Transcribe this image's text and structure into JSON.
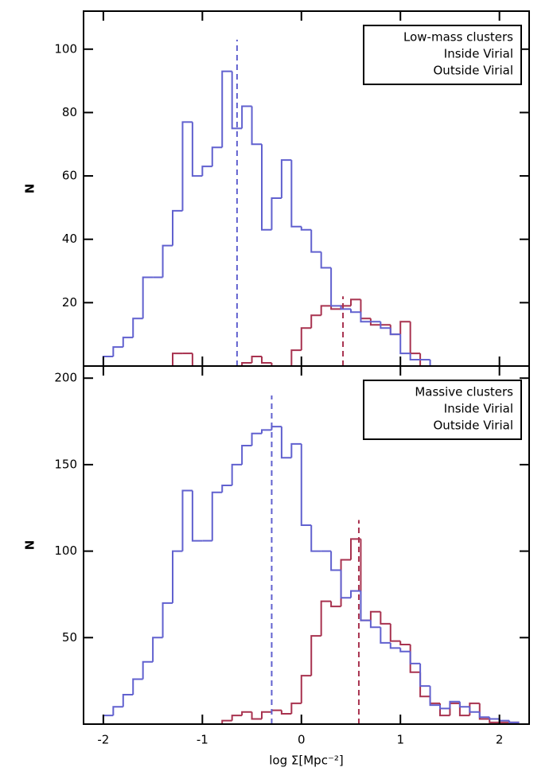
{
  "chart_data": [
    {
      "type": "histogram",
      "legend_title": "Low-mass clusters",
      "legend_title_color": "#a0109a",
      "legend": "upper right",
      "ylabel": "N",
      "show_xtick_labels": false,
      "bins": [
        -2.1,
        -2.0,
        -1.9,
        -1.8,
        -1.7,
        -1.6,
        -1.5,
        -1.4,
        -1.3,
        -1.2,
        -1.1,
        -1.0,
        -0.9,
        -0.8,
        -0.7,
        -0.6,
        -0.5,
        -0.4,
        -0.3,
        -0.2,
        -0.1,
        0.0,
        0.1,
        0.2,
        0.3,
        0.4,
        0.5,
        0.6,
        0.7,
        0.8,
        0.9,
        1.0,
        1.1,
        1.2,
        1.3,
        1.4,
        1.5,
        1.6,
        1.7,
        1.8,
        1.9,
        2.0,
        2.1,
        2.2
      ],
      "series": [
        {
          "name": "Inside Virial",
          "color": "#a8324f",
          "values": [
            0,
            0,
            0,
            0,
            0,
            0,
            0,
            0,
            4,
            4,
            0,
            0,
            0,
            0,
            0,
            1,
            3,
            1,
            0,
            0,
            5,
            12,
            16,
            19,
            18,
            19,
            21,
            15,
            13,
            13,
            10,
            14,
            4,
            0,
            0,
            0,
            0,
            0,
            0,
            0,
            0,
            0,
            0
          ],
          "median": {
            "x": 0.42,
            "top": 22
          }
        },
        {
          "name": "Outside Virial",
          "color": "#6161cf",
          "values": [
            0,
            3,
            6,
            9,
            15,
            28,
            28,
            38,
            49,
            77,
            60,
            63,
            69,
            93,
            75,
            82,
            70,
            43,
            53,
            65,
            44,
            43,
            36,
            31,
            19,
            18,
            17,
            14,
            14,
            12,
            10,
            4,
            2,
            2,
            0,
            0,
            0,
            0,
            0,
            0,
            0,
            0,
            0
          ],
          "median": {
            "x": -0.65,
            "top": 103
          }
        }
      ],
      "xlim": [
        -2.2,
        2.3
      ],
      "xticks": [
        -2,
        -1,
        0,
        1,
        2
      ],
      "ylim": [
        0,
        112
      ],
      "yticks": [
        20,
        40,
        60,
        80,
        100
      ]
    },
    {
      "type": "histogram",
      "legend_title": "Massive clusters",
      "legend_title_color": "#a0109a",
      "legend": "upper right",
      "ylabel": "N",
      "xlabel": "log Σ[Mpc⁻²]",
      "show_xtick_labels": true,
      "bins": [
        -2.1,
        -2.0,
        -1.9,
        -1.8,
        -1.7,
        -1.6,
        -1.5,
        -1.4,
        -1.3,
        -1.2,
        -1.1,
        -1.0,
        -0.9,
        -0.8,
        -0.7,
        -0.6,
        -0.5,
        -0.4,
        -0.3,
        -0.2,
        -0.1,
        0.0,
        0.1,
        0.2,
        0.3,
        0.4,
        0.5,
        0.6,
        0.7,
        0.8,
        0.9,
        1.0,
        1.1,
        1.2,
        1.3,
        1.4,
        1.5,
        1.6,
        1.7,
        1.8,
        1.9,
        2.0,
        2.1,
        2.2
      ],
      "series": [
        {
          "name": "Inside Virial",
          "color": "#a8324f",
          "values": [
            0,
            0,
            0,
            0,
            0,
            0,
            0,
            0,
            0,
            0,
            0,
            0,
            0,
            2,
            5,
            7,
            3,
            7,
            8,
            6,
            12,
            28,
            51,
            71,
            68,
            95,
            107,
            60,
            65,
            58,
            48,
            46,
            30,
            16,
            12,
            5,
            12,
            5,
            12,
            3,
            1,
            1,
            1
          ],
          "median": {
            "x": 0.58,
            "top": 118
          }
        },
        {
          "name": "Outside Virial",
          "color": "#6161cf",
          "values": [
            0,
            5,
            10,
            17,
            26,
            36,
            50,
            70,
            100,
            135,
            106,
            106,
            134,
            138,
            150,
            161,
            168,
            170,
            172,
            154,
            162,
            115,
            100,
            100,
            89,
            73,
            77,
            60,
            56,
            47,
            44,
            42,
            35,
            22,
            11,
            9,
            13,
            10,
            7,
            4,
            3,
            2,
            1
          ],
          "median": {
            "x": -0.3,
            "top": 190
          }
        }
      ],
      "xlim": [
        -2.2,
        2.3
      ],
      "xticks": [
        -2,
        -1,
        0,
        1,
        2
      ],
      "ylim": [
        0,
        207
      ],
      "yticks": [
        50,
        100,
        150,
        200
      ]
    }
  ]
}
